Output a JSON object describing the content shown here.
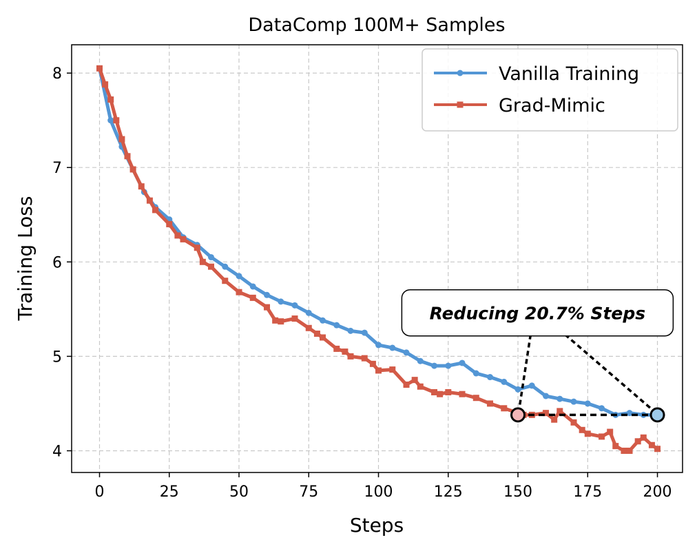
{
  "chart_data": {
    "type": "line",
    "title": "DataComp 100M+ Samples",
    "xlabel": "Steps",
    "ylabel": "Training Loss",
    "xlim": [
      -10,
      209
    ],
    "ylim": [
      3.77,
      8.3
    ],
    "xticks": [
      0,
      25,
      50,
      75,
      100,
      125,
      150,
      175,
      200
    ],
    "yticks": [
      4,
      5,
      6,
      7,
      8
    ],
    "grid": true,
    "legend_position": "top-right",
    "series": [
      {
        "name": "Vanilla Training",
        "color": "#5396d5",
        "marker": "circle",
        "x": [
          0,
          4,
          8,
          12,
          16,
          20,
          25,
          30,
          35,
          40,
          45,
          50,
          55,
          60,
          65,
          70,
          75,
          80,
          85,
          90,
          95,
          100,
          105,
          110,
          115,
          120,
          125,
          130,
          135,
          140,
          145,
          150,
          155,
          160,
          165,
          170,
          175,
          180,
          185,
          190,
          195,
          200
        ],
        "y": [
          8.05,
          7.5,
          7.22,
          6.98,
          6.74,
          6.58,
          6.45,
          6.26,
          6.18,
          6.05,
          5.95,
          5.85,
          5.74,
          5.65,
          5.58,
          5.54,
          5.46,
          5.38,
          5.33,
          5.27,
          5.25,
          5.12,
          5.09,
          5.04,
          4.95,
          4.9,
          4.9,
          4.93,
          4.82,
          4.78,
          4.73,
          4.65,
          4.69,
          4.58,
          4.55,
          4.52,
          4.5,
          4.45,
          4.38,
          4.4,
          4.38,
          4.38
        ]
      },
      {
        "name": "Grad-Mimic",
        "color": "#d35a47",
        "marker": "square",
        "x": [
          0,
          2,
          4,
          6,
          8,
          10,
          12,
          15,
          18,
          20,
          25,
          28,
          30,
          35,
          37,
          40,
          45,
          50,
          55,
          60,
          63,
          65,
          70,
          75,
          78,
          80,
          85,
          88,
          90,
          95,
          98,
          100,
          105,
          110,
          113,
          115,
          120,
          122,
          125,
          130,
          135,
          140,
          145,
          150,
          152,
          155,
          160,
          163,
          165,
          170,
          173,
          175,
          180,
          183,
          185,
          188,
          190,
          193,
          195,
          198,
          200
        ],
        "y": [
          8.05,
          7.88,
          7.72,
          7.5,
          7.3,
          7.12,
          6.98,
          6.8,
          6.65,
          6.55,
          6.4,
          6.28,
          6.24,
          6.15,
          6.0,
          5.95,
          5.8,
          5.68,
          5.62,
          5.52,
          5.38,
          5.37,
          5.4,
          5.3,
          5.24,
          5.2,
          5.08,
          5.05,
          5.0,
          4.98,
          4.92,
          4.85,
          4.86,
          4.7,
          4.75,
          4.68,
          4.62,
          4.6,
          4.62,
          4.6,
          4.56,
          4.5,
          4.45,
          4.4,
          4.38,
          4.38,
          4.4,
          4.33,
          4.42,
          4.3,
          4.22,
          4.18,
          4.15,
          4.2,
          4.05,
          4.0,
          4.0,
          4.1,
          4.14,
          4.06,
          4.02
        ]
      }
    ],
    "annotation": {
      "text": "Reducing 20.7% Steps",
      "point_start": {
        "x": 150,
        "y": 4.38,
        "fill": "#f4b6b8"
      },
      "point_end": {
        "x": 200,
        "y": 4.38,
        "fill": "#9ecae9"
      },
      "box_center": {
        "x": 157,
        "y": 5.45
      }
    }
  }
}
